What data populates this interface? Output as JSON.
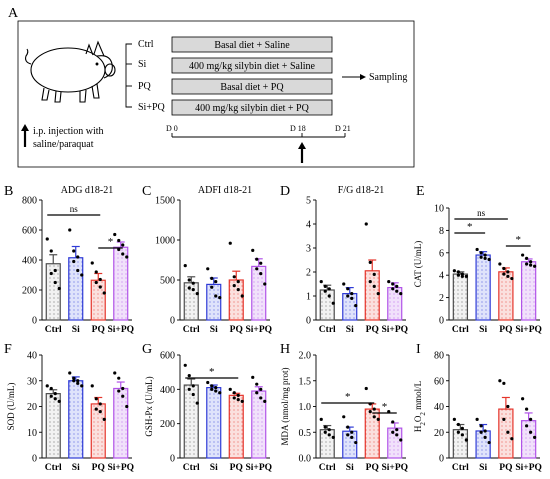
{
  "panel_a": {
    "letter": "A",
    "groups": [
      "Ctrl",
      "Si",
      "PQ",
      "Si+PQ"
    ],
    "treatments": [
      "Basal diet + Saline",
      "400 mg/kg silybin diet + Saline",
      "Basal diet + PQ",
      "400 mg/kg silybin diet + PQ"
    ],
    "sampling_label": "Sampling",
    "injection_note": [
      "i.p. injection with",
      "saline/paraquat"
    ],
    "timeline": {
      "start": "D 0",
      "mid": "D 18",
      "end": "D 21"
    }
  },
  "colors": {
    "Ctrl": "#4d4d4d",
    "Si": "#2f3bd6",
    "PQ": "#e5352b",
    "Si+PQ": "#b153e8",
    "Ctrl_fill": "#f2f2f2",
    "Si_fill": "#dfe3fb",
    "PQ_fill": "#fbe0de",
    "Si+PQ_fill": "#f1e1fb",
    "box_fill": "#d9d9d9"
  },
  "chart_data": [
    {
      "id": "B",
      "letter": "B",
      "type": "bar",
      "title": "ADG d18-21",
      "ylabel": "",
      "categories": [
        "Ctrl",
        "Si",
        "PQ",
        "Si+PQ"
      ],
      "ylim": [
        0,
        800
      ],
      "yticks": [
        "0",
        "200",
        "400",
        "600",
        "800"
      ],
      "values": [
        375,
        415,
        265,
        485
      ],
      "errors": [
        60,
        75,
        45,
        35
      ],
      "points": [
        [
          540,
          460,
          330,
          310,
          250,
          210
        ],
        [
          600,
          460,
          420,
          390,
          330,
          300
        ],
        [
          380,
          320,
          270,
          250,
          220,
          180
        ],
        [
          570,
          530,
          500,
          470,
          440,
          420
        ]
      ],
      "sig": [
        {
          "from": 0,
          "to": 2,
          "label": "ns"
        },
        {
          "from": 2,
          "to": 3,
          "label": "*"
        }
      ]
    },
    {
      "id": "C",
      "letter": "C",
      "type": "bar",
      "title": "ADFI d18-21",
      "ylabel": "",
      "categories": [
        "Ctrl",
        "Si",
        "PQ",
        "Si+PQ"
      ],
      "ylim": [
        0,
        1500
      ],
      "yticks": [
        "0",
        "500",
        "1000",
        "1500"
      ],
      "values": [
        465,
        445,
        500,
        670
      ],
      "errors": [
        75,
        80,
        110,
        95
      ],
      "points": [
        [
          680,
          500,
          460,
          400,
          380,
          330
        ],
        [
          640,
          520,
          480,
          410,
          300,
          280
        ],
        [
          960,
          540,
          480,
          430,
          380,
          300
        ],
        [
          870,
          760,
          710,
          640,
          580,
          450
        ]
      ],
      "sig": []
    },
    {
      "id": "D",
      "letter": "D",
      "type": "bar",
      "title": "F/G d18-21",
      "ylabel": "",
      "categories": [
        "Ctrl",
        "Si",
        "PQ",
        "Si+PQ"
      ],
      "ylim": [
        0,
        5
      ],
      "yticks": [
        "0",
        "1",
        "2",
        "3",
        "4",
        "5"
      ],
      "values": [
        1.25,
        1.1,
        2.05,
        1.35
      ],
      "errors": [
        0.2,
        0.25,
        0.45,
        0.2
      ],
      "points": [
        [
          1.6,
          1.4,
          1.3,
          1.2,
          1.0,
          0.7
        ],
        [
          1.5,
          1.3,
          1.1,
          1.0,
          0.9,
          0.6
        ],
        [
          4.0,
          2.4,
          1.9,
          1.6,
          1.4,
          1.1
        ],
        [
          1.6,
          1.5,
          1.4,
          1.3,
          1.2,
          1.1
        ]
      ],
      "sig": []
    },
    {
      "id": "E",
      "letter": "E",
      "type": "bar",
      "title": "",
      "ylabel": "CAT (U/mL)",
      "categories": [
        "Ctrl",
        "Si",
        "PQ",
        "Si+PQ"
      ],
      "ylim": [
        0,
        10
      ],
      "yticks": [
        "0",
        "2",
        "4",
        "6",
        "8",
        "10"
      ],
      "values": [
        4.1,
        5.8,
        4.3,
        5.2
      ],
      "errors": [
        0.2,
        0.3,
        0.35,
        0.25
      ],
      "points": [
        [
          4.4,
          4.3,
          4.1,
          4.0,
          3.9,
          3.9
        ],
        [
          6.3,
          6.0,
          5.8,
          5.6,
          5.5,
          5.4
        ],
        [
          5.0,
          4.6,
          4.3,
          4.1,
          3.9,
          3.7
        ],
        [
          5.8,
          5.5,
          5.2,
          5.0,
          4.9,
          4.8
        ]
      ],
      "sig": [
        {
          "from": 0,
          "to": 2,
          "label": "ns"
        },
        {
          "from": 0,
          "to": 1,
          "label": "*"
        },
        {
          "from": 2,
          "to": 3,
          "label": "*"
        }
      ]
    },
    {
      "id": "F",
      "letter": "F",
      "type": "bar",
      "title": "",
      "ylabel": "SOD (U/mL)",
      "categories": [
        "Ctrl",
        "Si",
        "PQ",
        "Si+PQ"
      ],
      "ylim": [
        0,
        40
      ],
      "yticks": [
        "0",
        "10",
        "20",
        "30",
        "40"
      ],
      "values": [
        25,
        30,
        21,
        27
      ],
      "errors": [
        1.5,
        1.5,
        2.5,
        2.5
      ],
      "points": [
        [
          28,
          27,
          25,
          24,
          23,
          22
        ],
        [
          33,
          31,
          30,
          30,
          29,
          28
        ],
        [
          28,
          23,
          21,
          19,
          18,
          15
        ],
        [
          33,
          31,
          27,
          26,
          24,
          20
        ]
      ],
      "sig": []
    },
    {
      "id": "G",
      "letter": "G",
      "type": "bar",
      "title": "",
      "ylabel": "GSH-Px (U/mL)",
      "categories": [
        "Ctrl",
        "Si",
        "PQ",
        "Si+PQ"
      ],
      "ylim": [
        0,
        600
      ],
      "yticks": [
        "0",
        "200",
        "400",
        "600"
      ],
      "values": [
        425,
        410,
        365,
        390
      ],
      "errors": [
        35,
        15,
        12,
        25
      ],
      "points": [
        [
          540,
          480,
          420,
          400,
          370,
          320
        ],
        [
          440,
          420,
          410,
          400,
          390,
          380
        ],
        [
          400,
          380,
          365,
          350,
          340,
          330
        ],
        [
          470,
          430,
          400,
          380,
          350,
          330
        ]
      ],
      "sig": [
        {
          "from": 0,
          "to": 2,
          "label": "*"
        }
      ]
    },
    {
      "id": "H",
      "letter": "H",
      "type": "bar",
      "title": "",
      "ylabel": "MDA (nmol/mg prot)",
      "categories": [
        "Ctrl",
        "Si",
        "PQ",
        "Si+PQ"
      ],
      "ylim": [
        0,
        2.0
      ],
      "yticks": [
        "0.0",
        "0.5",
        "1.0",
        "1.5",
        "2.0"
      ],
      "values": [
        0.55,
        0.52,
        0.95,
        0.58
      ],
      "errors": [
        0.08,
        0.08,
        0.1,
        0.1
      ],
      "points": [
        [
          0.75,
          0.6,
          0.55,
          0.5,
          0.45,
          0.4
        ],
        [
          0.8,
          0.6,
          0.5,
          0.45,
          0.4,
          0.3
        ],
        [
          1.35,
          1.05,
          0.95,
          0.9,
          0.8,
          0.75
        ],
        [
          0.9,
          0.7,
          0.55,
          0.5,
          0.45,
          0.35
        ]
      ],
      "sig": [
        {
          "from": 0,
          "to": 2,
          "label": "*"
        },
        {
          "from": 2,
          "to": 3,
          "label": "*"
        }
      ]
    },
    {
      "id": "I",
      "letter": "I",
      "type": "bar",
      "title": "",
      "ylabel": "H2O2 mmol/L",
      "categories": [
        "Ctrl",
        "Si",
        "PQ",
        "Si+PQ"
      ],
      "ylim": [
        0,
        80
      ],
      "yticks": [
        "0",
        "20",
        "40",
        "60",
        "80"
      ],
      "values": [
        22,
        21,
        38,
        29
      ],
      "errors": [
        4,
        5,
        9,
        6
      ],
      "points": [
        [
          30,
          26,
          23,
          20,
          18,
          14
        ],
        [
          30,
          25,
          21,
          20,
          16,
          12
        ],
        [
          60,
          58,
          40,
          30,
          20,
          15
        ],
        [
          46,
          38,
          30,
          25,
          20,
          16
        ]
      ],
      "sig": []
    }
  ]
}
